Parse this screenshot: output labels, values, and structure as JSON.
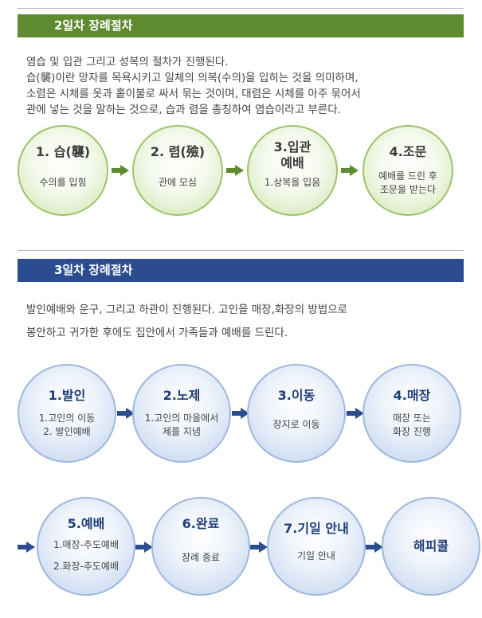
{
  "section2": {
    "title": "2일차 장례절차",
    "text": [
      "염습 및 입관 그리고 성복의 절차가 진행된다.",
      "습(襲)이란 망자를 목욕시키고 일체의 의복(수의)을 입히는 것을 의미하며,",
      "소렴은 시체를 옷과 홑이불로 싸서 묶는 것이며, 대렴은 시체를 아주 묶어서",
      "관에 넣는 것을 말하는 것으로, 습과 렴을 총칭하여 염습이라고 부른다."
    ],
    "steps": [
      {
        "title": [
          "1. 습(襲)"
        ],
        "desc": [
          "수의를 입힘"
        ]
      },
      {
        "title": [
          "2. 렴(殮)"
        ],
        "desc": [
          "관에 모심"
        ]
      },
      {
        "title": [
          "3.입관",
          "예배"
        ],
        "desc": [
          "1.상복을 입음"
        ]
      },
      {
        "title": [
          "4.조문"
        ],
        "desc": [
          "예배를 드린 후",
          "조문을 받는다"
        ]
      }
    ]
  },
  "section3": {
    "title": "3일차 장례절차",
    "text": [
      "발인예배와 운구, 그리고 하관이 진행된다.  고인을 매장,화장의 방법으로",
      "봉안하고 귀가한 후에도 집안에서 가족들과 예배를 드린다."
    ],
    "steps_row1": [
      {
        "title": [
          "1.발인"
        ],
        "desc": [
          "1.고인의 이동",
          "2. 발인예배"
        ]
      },
      {
        "title": [
          "2.노제"
        ],
        "desc": [
          "1.고인의 마을에서",
          "제를 지냄"
        ]
      },
      {
        "title": [
          "3.이동"
        ],
        "desc": [
          "장지로 이동"
        ]
      },
      {
        "title": [
          "4.매장"
        ],
        "desc": [
          "매장 또는",
          "화장 진행"
        ]
      }
    ],
    "steps_row2": [
      {
        "title": [
          "5.예배"
        ],
        "desc": [
          "1.매장-추도예배",
          "",
          "2.화장-추도예배"
        ]
      },
      {
        "title": [
          "6.완료"
        ],
        "desc": [
          "장례 종료"
        ]
      },
      {
        "title": [
          "7.기일 안내"
        ],
        "desc": [
          "기일 안내"
        ]
      },
      {
        "title": [
          "해피콜"
        ],
        "desc": []
      }
    ]
  },
  "colors": {
    "green_bar": "#5e8a30",
    "blue_bar": "#2b4d8f",
    "green_circle_border": "#9cc468",
    "blue_circle_border": "#9fb8dd"
  }
}
